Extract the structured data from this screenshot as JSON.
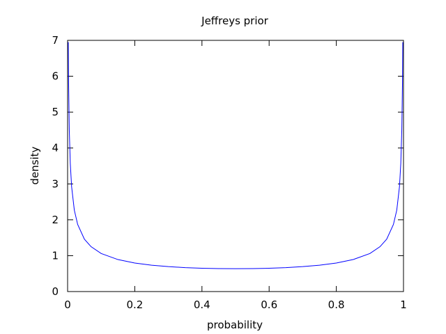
{
  "chart_data": {
    "type": "line",
    "title": "Jeffreys prior",
    "xlabel": "probability",
    "ylabel": "density",
    "xlim": [
      0,
      1
    ],
    "ylim": [
      0,
      7
    ],
    "xticks": [
      {
        "value": 0,
        "label": "0"
      },
      {
        "value": 0.2,
        "label": "0.2"
      },
      {
        "value": 0.4,
        "label": "0.4"
      },
      {
        "value": 0.6,
        "label": "0.6"
      },
      {
        "value": 0.8,
        "label": "0.8"
      },
      {
        "value": 1,
        "label": "1"
      }
    ],
    "yticks": [
      {
        "value": 0,
        "label": "0"
      },
      {
        "value": 1,
        "label": "1"
      },
      {
        "value": 2,
        "label": "2"
      },
      {
        "value": 3,
        "label": "3"
      },
      {
        "value": 4,
        "label": "4"
      },
      {
        "value": 5,
        "label": "5"
      },
      {
        "value": 6,
        "label": "6"
      },
      {
        "value": 7,
        "label": "7"
      }
    ],
    "grid": false,
    "legend": "none",
    "series": [
      {
        "color": "#0000ff",
        "x": [
          0.0021,
          0.003,
          0.005,
          0.008,
          0.012,
          0.02,
          0.03,
          0.05,
          0.07,
          0.1,
          0.15,
          0.2,
          0.25,
          0.3,
          0.35,
          0.4,
          0.45,
          0.5,
          0.55,
          0.6,
          0.65,
          0.7,
          0.75,
          0.8,
          0.85,
          0.9,
          0.93,
          0.95,
          0.97,
          0.98,
          0.988,
          0.992,
          0.995,
          0.997,
          0.9979
        ],
        "y": [
          6.95,
          5.82,
          4.51,
          3.57,
          2.92,
          2.27,
          1.87,
          1.46,
          1.25,
          1.06,
          0.891,
          0.796,
          0.735,
          0.695,
          0.667,
          0.65,
          0.64,
          0.637,
          0.64,
          0.65,
          0.667,
          0.695,
          0.735,
          0.796,
          0.891,
          1.06,
          1.25,
          1.46,
          1.87,
          2.27,
          2.92,
          3.57,
          4.51,
          5.82,
          6.95
        ]
      }
    ]
  }
}
